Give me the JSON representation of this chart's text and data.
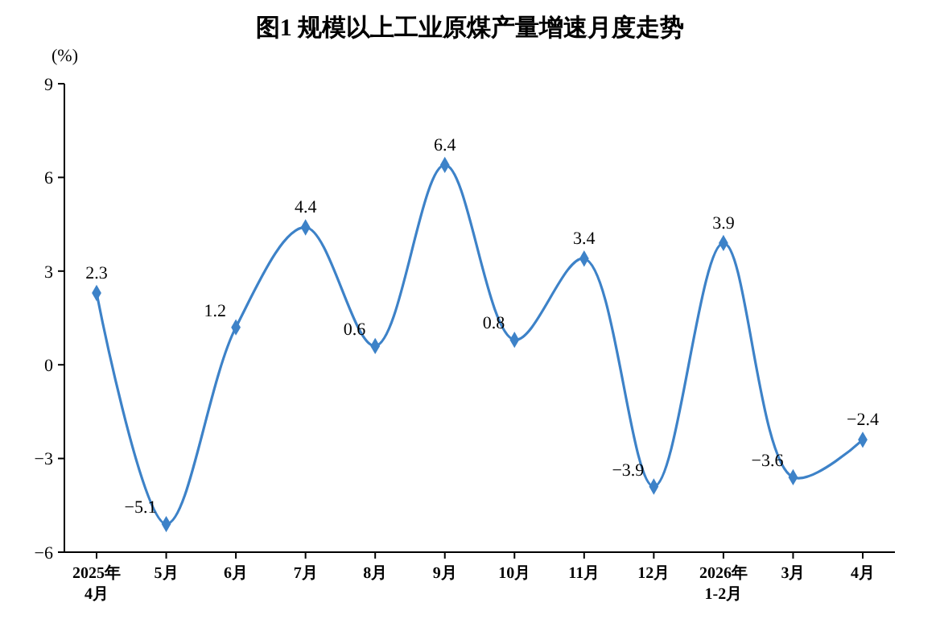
{
  "chart_data": {
    "type": "line",
    "title": "图1 规模以上工业原煤产量增速月度走势",
    "ylabel": "(%)",
    "categories": [
      "2025年\n4月",
      "5月",
      "6月",
      "7月",
      "8月",
      "9月",
      "10月",
      "11月",
      "12月",
      "2026年\n1-2月",
      "3月",
      "4月"
    ],
    "series": [
      {
        "color": "#3d82c8",
        "values": [
          2.3,
          -5.1,
          1.2,
          4.4,
          0.6,
          6.4,
          0.8,
          3.4,
          -3.9,
          3.9,
          -3.6,
          -2.4
        ]
      }
    ],
    "ylim": [
      -6,
      9
    ],
    "yticks": [
      -6,
      -3,
      0,
      3,
      6,
      9
    ],
    "grid": false,
    "marker": "diamond",
    "line_style": "solid",
    "data_labels": true
  }
}
